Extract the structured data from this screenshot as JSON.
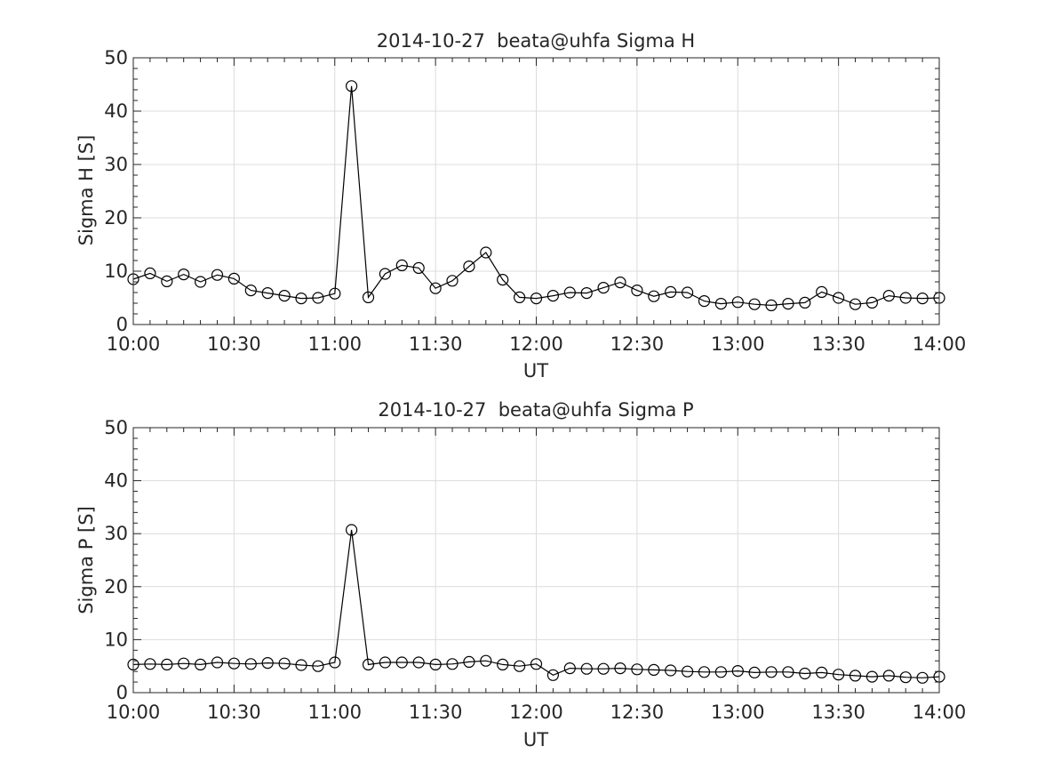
{
  "chart_data": [
    {
      "type": "line",
      "title": "2014-10-27  beata@uhfa Sigma H",
      "xlabel": "UT",
      "ylabel": "Sigma H [S]",
      "xlim": [
        "10:00",
        "14:00"
      ],
      "ylim": [
        0,
        50
      ],
      "xticks": [
        "10:00",
        "10:30",
        "11:00",
        "11:30",
        "12:00",
        "12:30",
        "13:00",
        "13:30",
        "14:00"
      ],
      "yticks": [
        "0",
        "10",
        "20",
        "30",
        "40",
        "50"
      ],
      "grid": true,
      "marker": "circle",
      "line_color": "#000000",
      "x": [
        "10:00",
        "10:05",
        "10:10",
        "10:15",
        "10:20",
        "10:25",
        "10:30",
        "10:35",
        "10:40",
        "10:45",
        "10:50",
        "10:55",
        "11:00",
        "11:05",
        "11:10",
        "11:15",
        "11:20",
        "11:25",
        "11:30",
        "11:35",
        "11:40",
        "11:45",
        "11:50",
        "11:55",
        "12:00",
        "12:05",
        "12:10",
        "12:15",
        "12:20",
        "12:25",
        "12:30",
        "12:35",
        "12:40",
        "12:45",
        "12:50",
        "12:55",
        "13:00",
        "13:05",
        "13:10",
        "13:15",
        "13:20",
        "13:25",
        "13:30",
        "13:35",
        "13:40",
        "13:45",
        "13:50",
        "13:55",
        "14:00"
      ],
      "values": [
        8.5,
        9.6,
        8.1,
        9.4,
        8.0,
        9.3,
        8.6,
        6.4,
        5.9,
        5.4,
        4.9,
        5.0,
        5.8,
        44.7,
        5.1,
        9.5,
        11.1,
        10.6,
        6.8,
        8.2,
        10.9,
        13.5,
        8.4,
        5.1,
        4.9,
        5.4,
        6.0,
        5.9,
        6.9,
        7.9,
        6.4,
        5.3,
        6.1,
        6.0,
        4.4,
        3.9,
        4.2,
        3.8,
        3.6,
        3.9,
        4.1,
        6.1,
        5.0,
        3.8,
        4.1,
        5.4,
        5.0,
        4.9,
        5.0
      ]
    },
    {
      "type": "line",
      "title": "2014-10-27  beata@uhfa Sigma P",
      "xlabel": "UT",
      "ylabel": "Sigma P [S]",
      "xlim": [
        "10:00",
        "14:00"
      ],
      "ylim": [
        0,
        50
      ],
      "xticks": [
        "10:00",
        "10:30",
        "11:00",
        "11:30",
        "12:00",
        "12:30",
        "13:00",
        "13:30",
        "14:00"
      ],
      "yticks": [
        "0",
        "10",
        "20",
        "30",
        "40",
        "50"
      ],
      "grid": true,
      "marker": "circle",
      "line_color": "#000000",
      "x": [
        "10:00",
        "10:05",
        "10:10",
        "10:15",
        "10:20",
        "10:25",
        "10:30",
        "10:35",
        "10:40",
        "10:45",
        "10:50",
        "10:55",
        "11:00",
        "11:05",
        "11:10",
        "11:15",
        "11:20",
        "11:25",
        "11:30",
        "11:35",
        "11:40",
        "11:45",
        "11:50",
        "11:55",
        "12:00",
        "12:05",
        "12:10",
        "12:15",
        "12:20",
        "12:25",
        "12:30",
        "12:35",
        "12:40",
        "12:45",
        "12:50",
        "12:55",
        "13:00",
        "13:05",
        "13:10",
        "13:15",
        "13:20",
        "13:25",
        "13:30",
        "13:35",
        "13:40",
        "13:45",
        "13:50",
        "13:55",
        "14:00"
      ],
      "values": [
        5.3,
        5.4,
        5.3,
        5.5,
        5.3,
        5.7,
        5.5,
        5.4,
        5.6,
        5.5,
        5.2,
        5.0,
        5.7,
        30.7,
        5.3,
        5.7,
        5.7,
        5.7,
        5.3,
        5.4,
        5.8,
        6.0,
        5.3,
        5.0,
        5.4,
        3.3,
        4.6,
        4.5,
        4.5,
        4.6,
        4.4,
        4.3,
        4.2,
        4.0,
        3.9,
        3.9,
        4.1,
        3.8,
        3.9,
        3.9,
        3.6,
        3.8,
        3.4,
        3.2,
        3.0,
        3.2,
        2.9,
        2.8,
        3.0
      ]
    }
  ]
}
